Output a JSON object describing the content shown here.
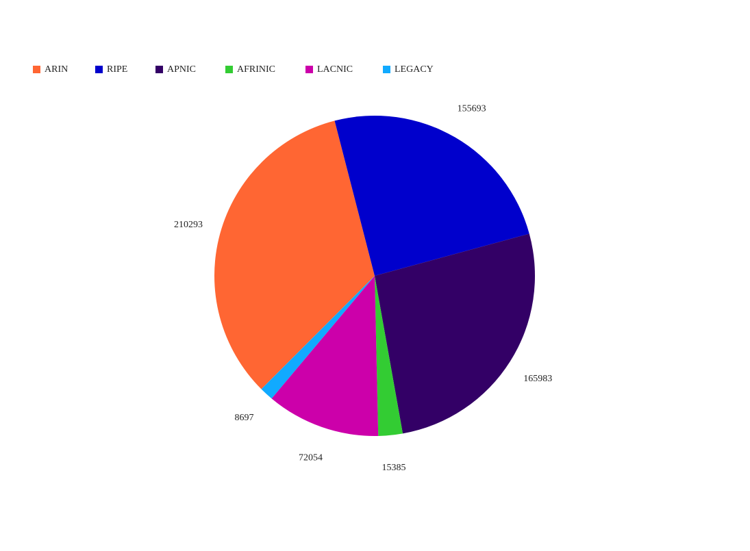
{
  "chart_data": {
    "type": "pie",
    "categories": [
      "ARIN",
      "RIPE",
      "APNIC",
      "AFRINIC",
      "LACNIC",
      "LEGACY"
    ],
    "values": [
      210293,
      155693,
      165983,
      15385,
      72054,
      8697
    ],
    "colors": [
      "#ff6633",
      "#0000cc",
      "#330066",
      "#33cc33",
      "#cc00aa",
      "#11aaff"
    ]
  }
}
